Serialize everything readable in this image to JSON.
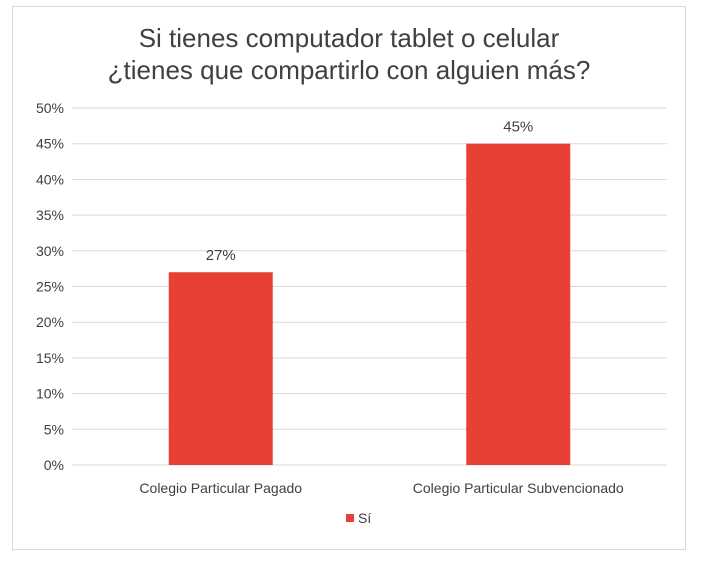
{
  "chart_data": {
    "type": "bar",
    "title": [
      "Si tienes computador tablet o celular",
      "¿tienes que compartirlo con alguien más?"
    ],
    "categories": [
      "Colegio Particular Pagado",
      "Colegio Particular Subvencionado"
    ],
    "series": [
      {
        "name": "Sí",
        "values": [
          27,
          45
        ],
        "labels": [
          "27%",
          "45%"
        ]
      }
    ],
    "ylim": [
      0,
      50
    ],
    "y_ticks": [
      0,
      5,
      10,
      15,
      20,
      25,
      30,
      35,
      40,
      45,
      50
    ],
    "y_tick_labels": [
      "0%",
      "5%",
      "10%",
      "15%",
      "20%",
      "25%",
      "30%",
      "35%",
      "40%",
      "45%",
      "50%"
    ],
    "grid": true,
    "legend": "bottom",
    "colors": {
      "bar": "#e84034",
      "grid": "#d9d9d9",
      "text": "#404040"
    }
  }
}
